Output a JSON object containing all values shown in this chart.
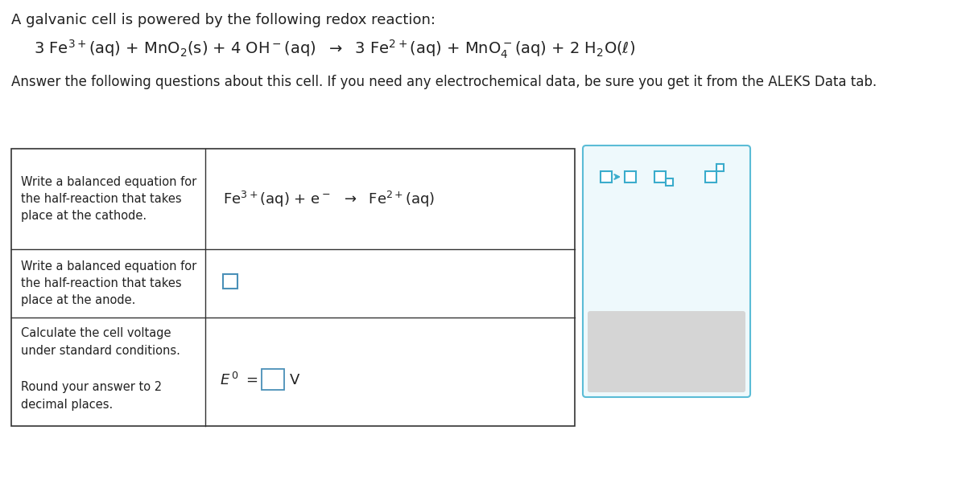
{
  "bg_color": "#ffffff",
  "title_text": "A galvanic cell is powered by the following redox reaction:",
  "subtitle_text": "Answer the following questions about this cell. If you need any electrochemical data, be sure you get it from the ALEKS Data tab.",
  "row1_label": "Write a balanced equation for\nthe half-reaction that takes\nplace at the cathode.",
  "row2_label": "Write a balanced equation for\nthe half-reaction that takes\nplace at the anode.",
  "row3_label": "Calculate the cell voltage\nunder standard conditions.\n\nRound your answer to 2\ndecimal places.",
  "teal": "#3aaccc",
  "dark_gray": "#4a5068",
  "text_color": "#222222",
  "border_color": "#333333",
  "panel_border": "#5bbcd6",
  "panel_bg": "#eef9fc",
  "gray_bar_bg": "#d5d5d5"
}
